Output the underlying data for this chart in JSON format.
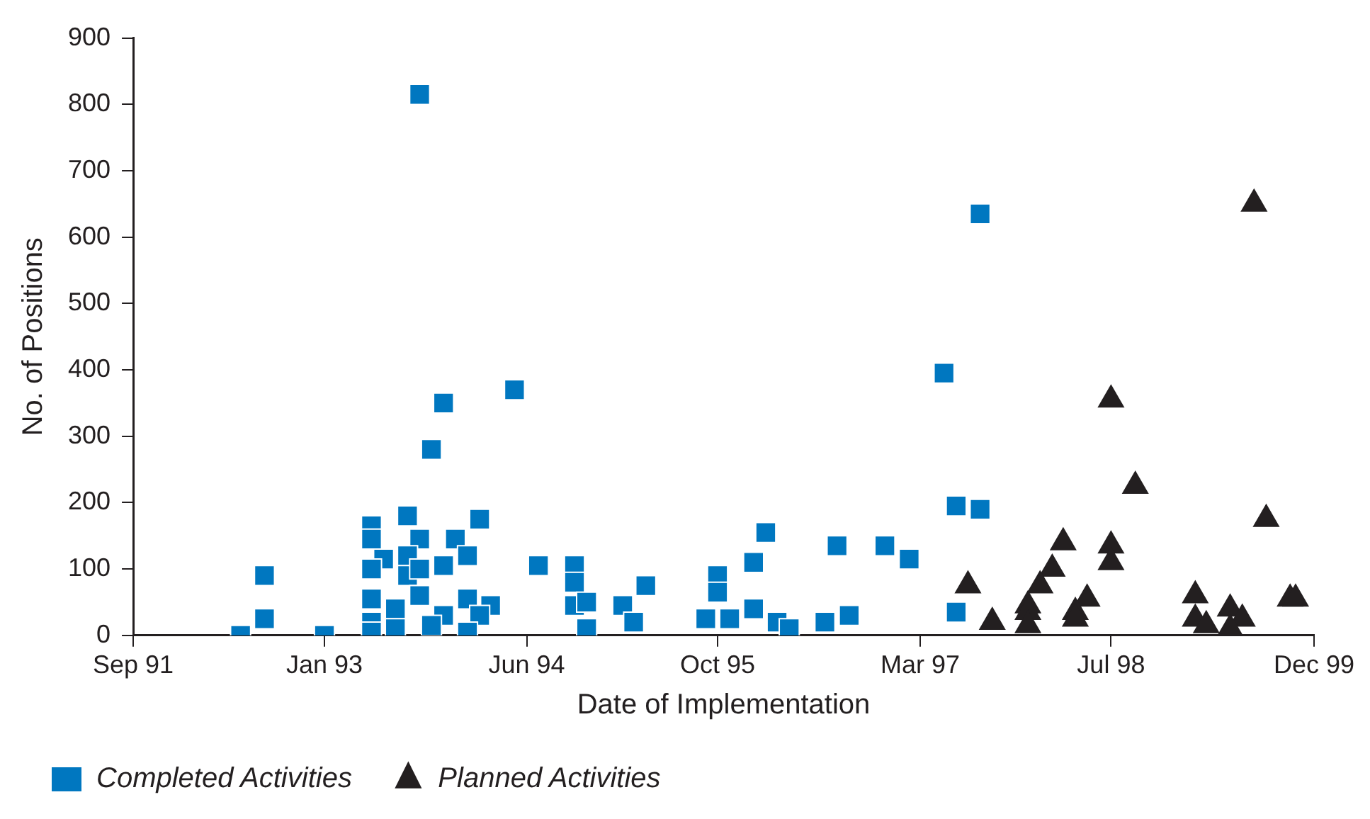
{
  "chart_data": {
    "type": "scatter",
    "xlabel": "Date of Implementation",
    "ylabel": "No. of Positions",
    "xlim": [
      "1991-09",
      "1999-12"
    ],
    "xticks": [
      {
        "value": "1991-09",
        "label": "Sep 91"
      },
      {
        "value": "1993-01",
        "label": "Jan 93"
      },
      {
        "value": "1994-06",
        "label": "Jun 94"
      },
      {
        "value": "1995-10",
        "label": "Oct 95"
      },
      {
        "value": "1997-03",
        "label": "Mar 97"
      },
      {
        "value": "1998-07",
        "label": "Jul 98"
      },
      {
        "value": "1999-12",
        "label": "Dec 99"
      }
    ],
    "ylim": [
      0,
      900
    ],
    "yticks": [
      0,
      100,
      200,
      300,
      400,
      500,
      600,
      700,
      800,
      900
    ],
    "grid": false,
    "legend": "bottom",
    "series": [
      {
        "name": "Completed Activities",
        "color": "#0077c0",
        "marker": "square",
        "x": [
          "1992-06",
          "1992-08",
          "1992-08",
          "1993-01",
          "1993-05",
          "1993-08",
          "1994-02",
          "1993-05",
          "1993-09",
          "1993-12",
          "1993-06",
          "1993-08",
          "1994-01",
          "1993-05",
          "1993-08",
          "1993-11",
          "1993-09",
          "1993-05",
          "1993-09",
          "1994-01",
          "1994-03",
          "1993-07",
          "1993-11",
          "1994-02",
          "1993-05",
          "1993-07",
          "1993-10",
          "1993-05",
          "1994-01",
          "1993-09",
          "1993-11",
          "1993-10",
          "1994-05",
          "1994-07",
          "1994-10",
          "1994-10",
          "1994-10",
          "1994-11",
          "1994-11",
          "1995-02",
          "1995-03",
          "1995-04",
          "1995-10",
          "1995-10",
          "1995-09",
          "1995-11",
          "1996-01",
          "1996-02",
          "1996-01",
          "1996-03",
          "1996-04",
          "1996-07",
          "1996-09",
          "1996-08",
          "1996-12",
          "1997-02",
          "1997-08",
          "1997-05",
          "1997-06",
          "1997-08",
          "1997-06"
        ],
        "values": [
          0,
          90,
          25,
          0,
          165,
          180,
          175,
          145,
          145,
          145,
          115,
          120,
          120,
          100,
          90,
          105,
          100,
          55,
          60,
          55,
          45,
          40,
          30,
          30,
          20,
          10,
          15,
          5,
          5,
          815,
          350,
          280,
          370,
          105,
          105,
          80,
          45,
          50,
          10,
          45,
          20,
          75,
          90,
          65,
          25,
          25,
          110,
          155,
          40,
          20,
          10,
          20,
          30,
          135,
          135,
          115,
          635,
          395,
          195,
          190,
          35
        ]
      },
      {
        "name": "Planned Activities",
        "color": "#231f20",
        "marker": "triangle",
        "x": [
          "1997-07",
          "1997-09",
          "1998-07",
          "1998-09",
          "1999-08",
          "1998-03",
          "1998-07",
          "1998-07",
          "1998-02",
          "1998-01",
          "1997-12",
          "1997-12",
          "1997-12",
          "1998-05",
          "1998-04",
          "1998-04",
          "1999-02",
          "1999-02",
          "1999-03",
          "1999-05",
          "1999-06",
          "1999-05",
          "1999-10",
          "1999-10-15",
          "1999-07"
        ],
        "values": [
          75,
          20,
          355,
          225,
          175,
          140,
          135,
          110,
          100,
          75,
          45,
          35,
          15,
          55,
          35,
          25,
          60,
          25,
          15,
          40,
          25,
          10,
          55,
          55,
          650
        ]
      }
    ]
  }
}
